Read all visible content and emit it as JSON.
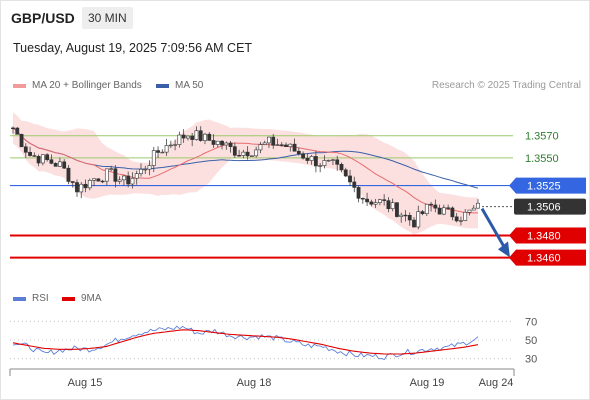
{
  "header": {
    "pair": "GBP/USD",
    "timeframe": "30 MIN",
    "datetime": "Tuesday, August 19, 2025 7:09:56 AM CET"
  },
  "legend": {
    "ma20": "MA 20 + Bollinger Bands",
    "ma50": "MA 50",
    "copyright": "Research © 2025 Trading Central",
    "rsi": "RSI",
    "rsi_ma": "9MA"
  },
  "colors": {
    "bullish_candle": "#2e8b3a",
    "bearish_candle": "#c0392b",
    "ma20": "#e86c6c",
    "bollinger_fill": "#fbd5d5",
    "ma50": "#3a5fa8",
    "resistance": "#9cc96b",
    "pivot": "#3366e0",
    "support": "#e00000",
    "last_price": "#333333",
    "rsi": "#5b7fd6",
    "rsi_ma": "#e00000"
  },
  "chart_data": {
    "type": "candlestick",
    "y_range": [
      1.3438,
      1.3595
    ],
    "x_ticks": [
      "Aug 15",
      "Aug 18",
      "Aug 19",
      "Aug 24"
    ],
    "levels": [
      {
        "value": 1.357,
        "label": "1.3570",
        "kind": "resistance"
      },
      {
        "value": 1.355,
        "label": "1.3550",
        "kind": "resistance"
      },
      {
        "value": 1.3525,
        "label": "1.3525",
        "kind": "pivot"
      },
      {
        "value": 1.3506,
        "label": "1.3506",
        "kind": "last_price"
      },
      {
        "value": 1.348,
        "label": "1.3480",
        "kind": "support"
      },
      {
        "value": 1.346,
        "label": "1.3460",
        "kind": "support"
      }
    ],
    "forecast_arrow": {
      "from": 1.3506,
      "to": 1.3462,
      "direction": "down"
    },
    "close_path": [
      1.3577,
      1.3553,
      1.3548,
      1.3543,
      1.3522,
      1.3531,
      1.3536,
      1.3528,
      1.3538,
      1.3555,
      1.3565,
      1.3572,
      1.3567,
      1.3563,
      1.3555,
      1.3557,
      1.3564,
      1.3561,
      1.3553,
      1.3546,
      1.3543,
      1.3527,
      1.3512,
      1.351,
      1.3502,
      1.3492,
      1.3507,
      1.3501,
      1.3497,
      1.3505
    ],
    "rsi": {
      "levels": [
        70,
        50,
        30
      ],
      "rsi_path": [
        47,
        43,
        35,
        39,
        41,
        40,
        45,
        52,
        57,
        60,
        62,
        64,
        57,
        60,
        55,
        53,
        54,
        52,
        48,
        44,
        43,
        38,
        34,
        33,
        32,
        36,
        38,
        41,
        42,
        46,
        52
      ],
      "ma_path": [
        47,
        44,
        41,
        40,
        40,
        41,
        43,
        48,
        53,
        57,
        59,
        61,
        60,
        58,
        56,
        55,
        54,
        53,
        51,
        48,
        45,
        41,
        38,
        36,
        35,
        35,
        36,
        38,
        40,
        42,
        45
      ]
    }
  }
}
